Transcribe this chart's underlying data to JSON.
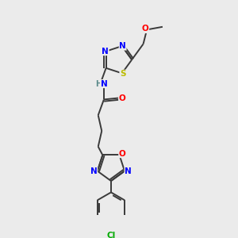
{
  "background_color": "#ebebeb",
  "bond_color": "#3a3a3a",
  "atom_colors": {
    "N": "#0000ff",
    "O": "#ff0000",
    "S": "#bbbb00",
    "Cl": "#00aa00",
    "C": "#3a3a3a",
    "H": "#5a8a8a"
  },
  "figsize": [
    3.0,
    3.0
  ],
  "dpi": 100
}
